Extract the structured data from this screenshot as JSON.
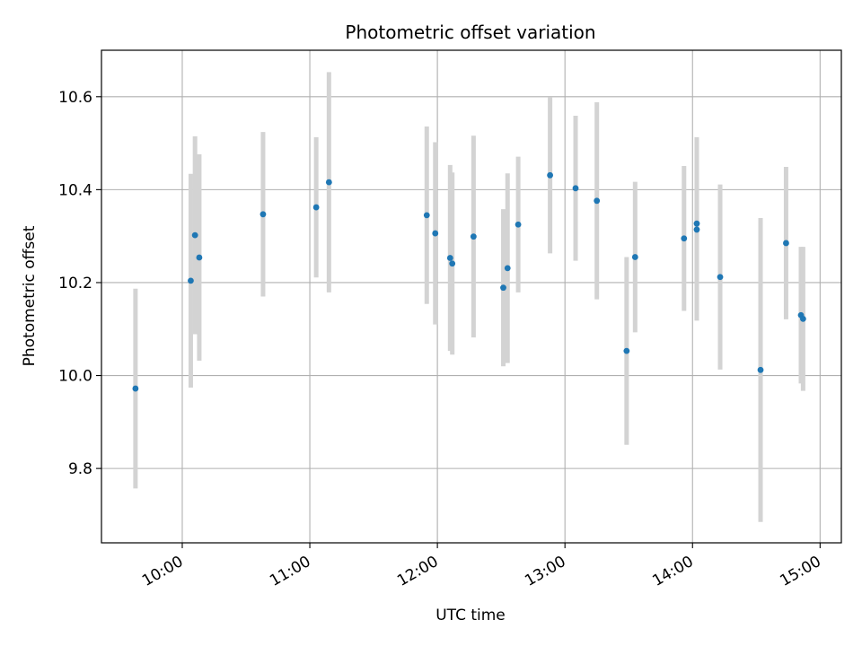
{
  "chart_data": {
    "type": "scatter",
    "title": "Photometric offset variation",
    "xlabel": "UTC time",
    "ylabel": "Photometric offset",
    "x_axis_type": "time",
    "xlim": [
      "09:22",
      "15:10"
    ],
    "ylim": [
      9.64,
      10.7
    ],
    "x_ticks": [
      "10:00",
      "11:00",
      "12:00",
      "13:00",
      "14:00",
      "15:00"
    ],
    "y_ticks": [
      9.8,
      10.0,
      10.2,
      10.4,
      10.6
    ],
    "y_tick_labels": [
      "9.8",
      "10.0",
      "10.2",
      "10.4",
      "10.6"
    ],
    "grid": true,
    "marker_color": "#1f77b4",
    "errorbar_color": "#d3d3d3",
    "points": [
      {
        "time": "09:38",
        "y": 9.972,
        "err": 0.215
      },
      {
        "time": "10:04",
        "y": 10.204,
        "err": 0.23
      },
      {
        "time": "10:06",
        "y": 10.302,
        "err": 0.213
      },
      {
        "time": "10:08",
        "y": 10.254,
        "err": 0.222
      },
      {
        "time": "10:38",
        "y": 10.347,
        "err": 0.177
      },
      {
        "time": "11:03",
        "y": 10.362,
        "err": 0.151
      },
      {
        "time": "11:09",
        "y": 10.416,
        "err": 0.237
      },
      {
        "time": "11:55",
        "y": 10.345,
        "err": 0.191
      },
      {
        "time": "11:59",
        "y": 10.306,
        "err": 0.196
      },
      {
        "time": "12:06",
        "y": 10.253,
        "err": 0.2
      },
      {
        "time": "12:07",
        "y": 10.241,
        "err": 0.196
      },
      {
        "time": "12:17",
        "y": 10.299,
        "err": 0.217
      },
      {
        "time": "12:31",
        "y": 10.189,
        "err": 0.169
      },
      {
        "time": "12:33",
        "y": 10.231,
        "err": 0.204
      },
      {
        "time": "12:38",
        "y": 10.325,
        "err": 0.146
      },
      {
        "time": "12:53",
        "y": 10.431,
        "err": 0.168
      },
      {
        "time": "13:05",
        "y": 10.403,
        "err": 0.156
      },
      {
        "time": "13:15",
        "y": 10.376,
        "err": 0.212
      },
      {
        "time": "13:29",
        "y": 10.053,
        "err": 0.202
      },
      {
        "time": "13:33",
        "y": 10.255,
        "err": 0.162
      },
      {
        "time": "13:56",
        "y": 10.295,
        "err": 0.156
      },
      {
        "time": "14:02",
        "y": 10.327,
        "err": 0.186
      },
      {
        "time": "14:02",
        "y": 10.314,
        "err": 0.196
      },
      {
        "time": "14:13",
        "y": 10.212,
        "err": 0.199
      },
      {
        "time": "14:32",
        "y": 10.012,
        "err": 0.327
      },
      {
        "time": "14:44",
        "y": 10.285,
        "err": 0.164
      },
      {
        "time": "14:51",
        "y": 10.13,
        "err": 0.147
      },
      {
        "time": "14:52",
        "y": 10.122,
        "err": 0.155
      }
    ]
  }
}
